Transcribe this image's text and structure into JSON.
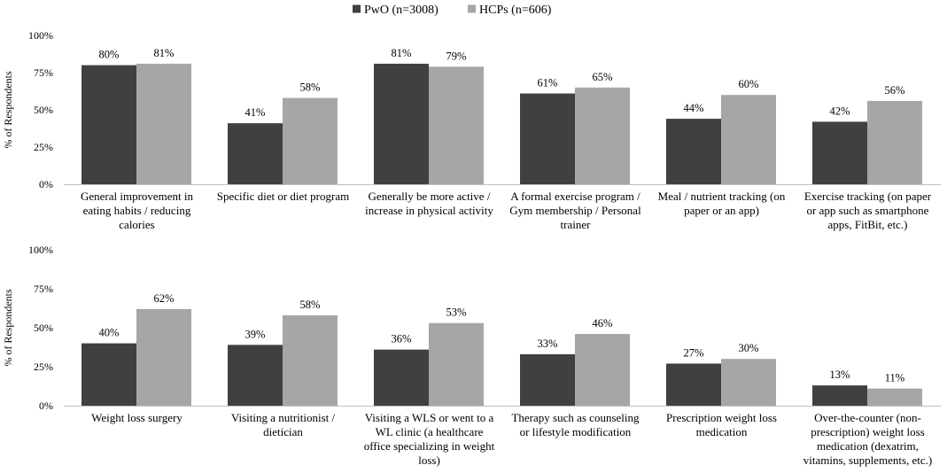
{
  "legend": {
    "series": [
      {
        "name": "PwO (n=3008)",
        "color": "#404040"
      },
      {
        "name": "HCPs (n=606)",
        "color": "#a6a6a6"
      }
    ]
  },
  "chart_data": [
    {
      "type": "bar",
      "ylabel": "% of Respondents",
      "ylim": [
        0,
        100
      ],
      "yticks": [
        "0%",
        "25%",
        "50%",
        "75%",
        "100%"
      ],
      "legend_position": "top",
      "categories": [
        [
          "General improvement in",
          "eating habits / reducing",
          "calories"
        ],
        [
          "Specific diet or diet program"
        ],
        [
          "Generally be more active /",
          "increase in physical activity"
        ],
        [
          "A formal exercise program /",
          "Gym membership / Personal",
          "trainer"
        ],
        [
          "Meal / nutrient tracking (on",
          "paper or an app)"
        ],
        [
          "Exercise tracking (on paper",
          "or app such as smartphone",
          "apps, FitBit, etc.)"
        ]
      ],
      "series": [
        {
          "name": "PwO (n=3008)",
          "values": [
            80,
            41,
            81,
            61,
            44,
            42
          ],
          "labels": [
            "80%",
            "41%",
            "81%",
            "61%",
            "44%",
            "42%"
          ]
        },
        {
          "name": "HCPs (n=606)",
          "values": [
            81,
            58,
            79,
            65,
            60,
            56
          ],
          "labels": [
            "81%",
            "58%",
            "79%",
            "65%",
            "60%",
            "56%"
          ]
        }
      ]
    },
    {
      "type": "bar",
      "ylabel": "% of Respondents",
      "ylim": [
        0,
        100
      ],
      "yticks": [
        "0%",
        "25%",
        "50%",
        "75%",
        "100%"
      ],
      "categories": [
        [
          "Weight loss surgery"
        ],
        [
          "Visiting a nutritionist /",
          "dietician"
        ],
        [
          "Visiting a WLS or went to a",
          "WL clinic (a healthcare",
          "office specializing in weight",
          "loss)"
        ],
        [
          "Therapy such as counseling",
          "or lifestyle modification"
        ],
        [
          "Prescription weight loss",
          "medication"
        ],
        [
          "Over-the-counter (non-",
          "prescription) weight loss",
          "medication (dexatrim,",
          "vitamins, supplements, etc.)"
        ]
      ],
      "series": [
        {
          "name": "PwO (n=3008)",
          "values": [
            40,
            39,
            36,
            33,
            27,
            13
          ],
          "labels": [
            "40%",
            "39%",
            "36%",
            "33%",
            "27%",
            "13%"
          ]
        },
        {
          "name": "HCPs (n=606)",
          "values": [
            62,
            58,
            53,
            46,
            30,
            11
          ],
          "labels": [
            "62%",
            "58%",
            "53%",
            "46%",
            "30%",
            "11%"
          ]
        }
      ]
    }
  ]
}
